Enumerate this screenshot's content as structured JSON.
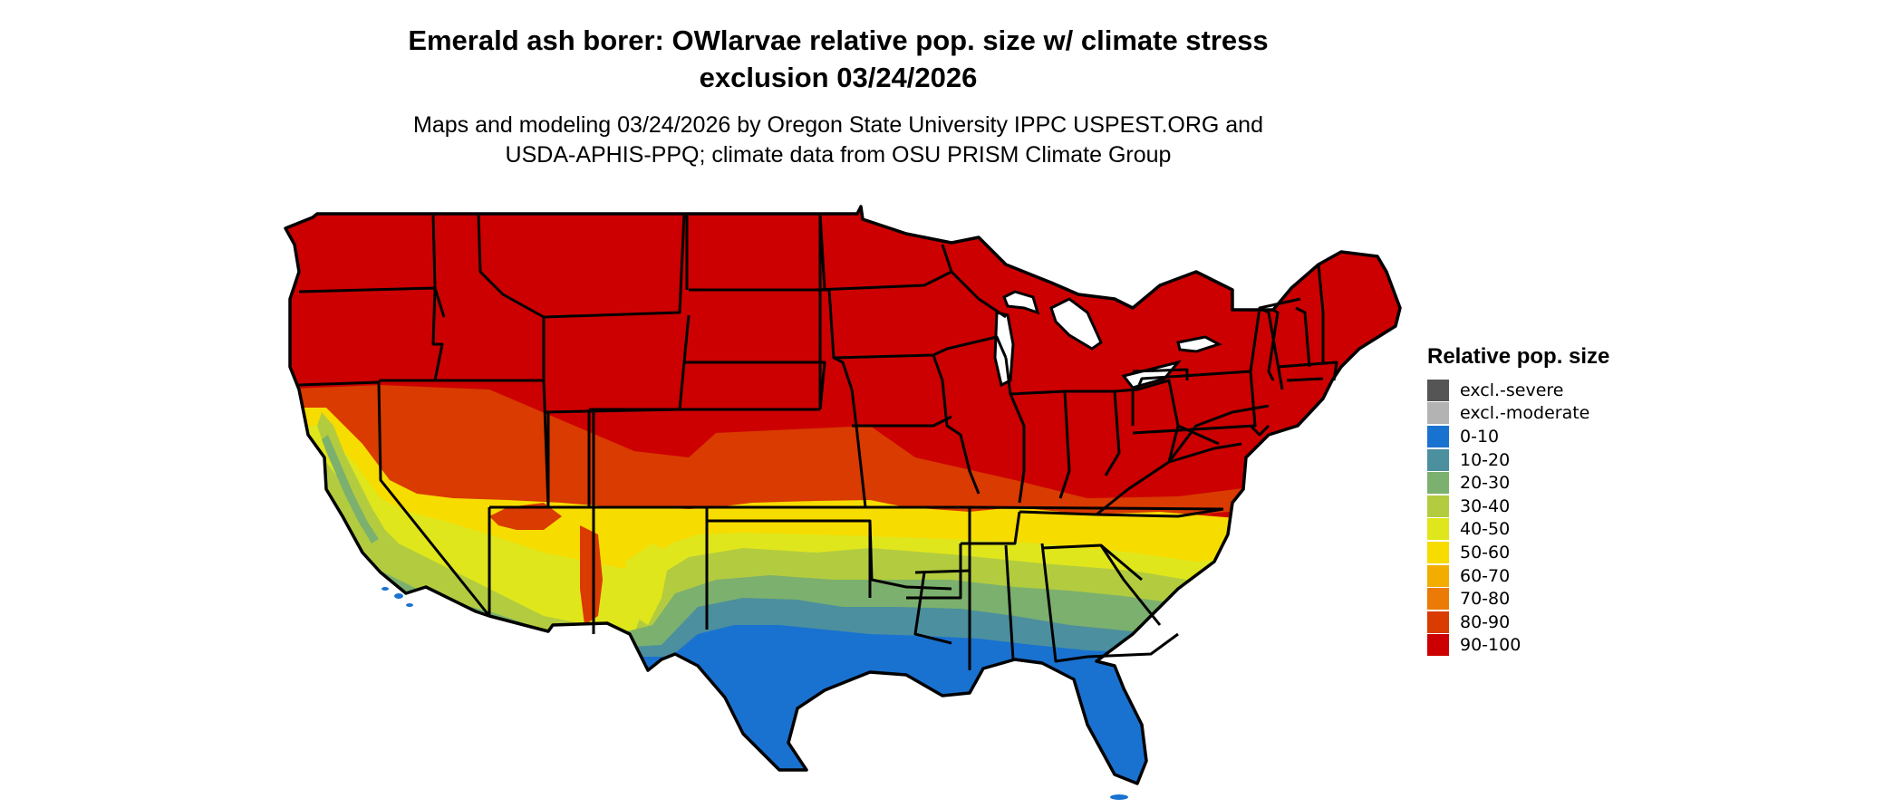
{
  "title": {
    "line1": "Emerald ash borer: OWlarvae relative pop. size w/ climate stress",
    "line2": "exclusion 03/24/2026"
  },
  "subtitle": {
    "line1": "Maps and modeling 03/24/2026 by Oregon State University IPPC USPEST.ORG and",
    "line2": "USDA-APHIS-PPQ; climate data from OSU PRISM Climate Group"
  },
  "legend": {
    "title": "Relative pop. size",
    "items": [
      {
        "label": "excl.-severe",
        "color": "#555555"
      },
      {
        "label": "excl.-moderate",
        "color": "#b3b3b3"
      },
      {
        "label": "0-10",
        "color": "#1a72d0"
      },
      {
        "label": "10-20",
        "color": "#4c8f9e"
      },
      {
        "label": "20-30",
        "color": "#7cb06e"
      },
      {
        "label": "30-40",
        "color": "#b3cc3f"
      },
      {
        "label": "40-50",
        "color": "#e0e61c"
      },
      {
        "label": "50-60",
        "color": "#f7dc00"
      },
      {
        "label": "60-70",
        "color": "#f2ad00"
      },
      {
        "label": "70-80",
        "color": "#ec7a06"
      },
      {
        "label": "80-90",
        "color": "#d93b00"
      },
      {
        "label": "90-100",
        "color": "#cc0000"
      }
    ]
  }
}
